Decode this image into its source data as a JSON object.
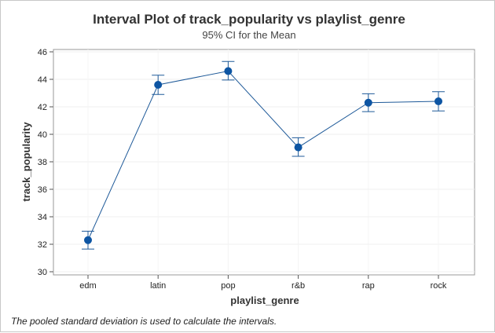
{
  "chart_data": {
    "type": "line",
    "title": "Interval Plot of track_popularity vs playlist_genre",
    "subtitle": "95% CI for the Mean",
    "xlabel": "playlist_genre",
    "ylabel": "track_popularity",
    "ylim": [
      30,
      46
    ],
    "yticks": [
      "30",
      "32",
      "34",
      "36",
      "38",
      "40",
      "42",
      "44",
      "46"
    ],
    "categories": [
      "edm",
      "latin",
      "pop",
      "r&b",
      "rap",
      "rock"
    ],
    "series": [
      {
        "means": [
          32.3,
          43.6,
          44.6,
          39.05,
          42.3,
          42.4
        ],
        "lower": [
          31.65,
          42.9,
          43.95,
          38.4,
          41.65,
          41.7
        ],
        "upper": [
          32.95,
          44.3,
          45.3,
          39.75,
          42.95,
          43.1
        ]
      }
    ],
    "grid": true,
    "line_color": "#1f5a99",
    "marker_color": "#0d55a3",
    "errorbar_color": "#1f5a99"
  },
  "footnote": "The pooled standard deviation is used to calculate the intervals."
}
